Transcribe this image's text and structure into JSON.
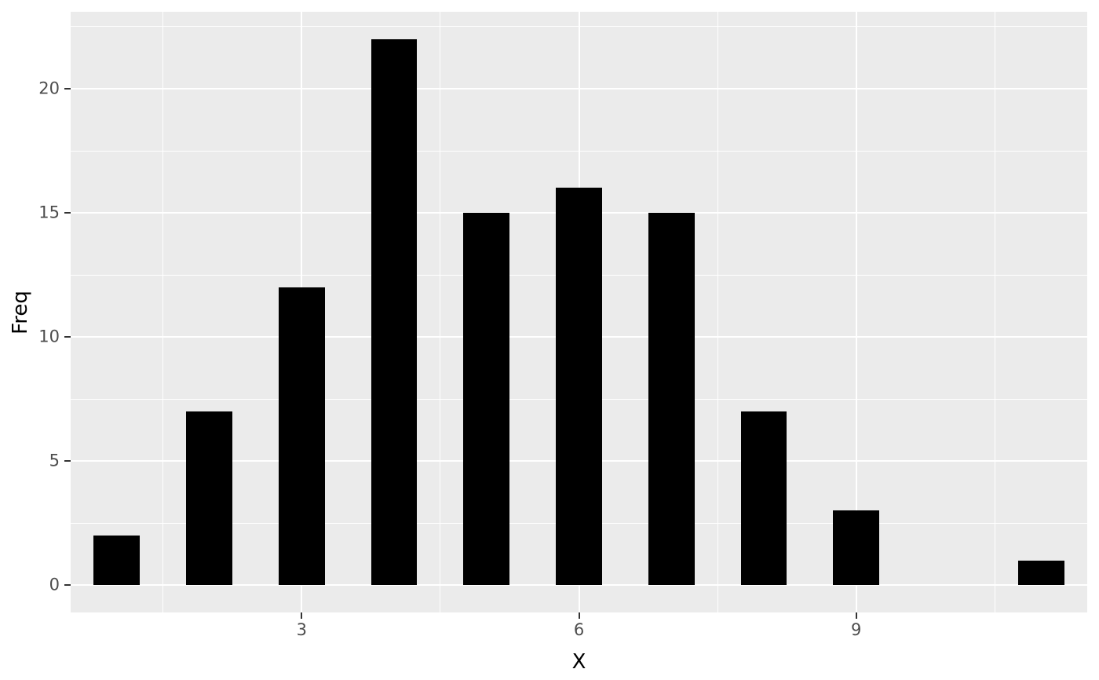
{
  "chart_data": {
    "type": "bar",
    "title": "",
    "xlabel": "X",
    "ylabel": "Freq",
    "x": [
      1,
      2,
      3,
      4,
      5,
      6,
      7,
      8,
      9,
      10,
      11
    ],
    "values": [
      2,
      7,
      12,
      22,
      15,
      16,
      15,
      7,
      3,
      0,
      1
    ],
    "bar_width": 0.5,
    "xlim": [
      0.5,
      11.5
    ],
    "ylim": [
      -1.1,
      23.1
    ],
    "x_major_ticks": [
      3,
      6,
      9
    ],
    "y_major_ticks": [
      0,
      5,
      10,
      15,
      20
    ],
    "x_minor_gridlines": [
      1.5,
      4.5,
      7.5,
      10.5
    ],
    "y_minor_gridlines": [
      2.5,
      7.5,
      12.5,
      17.5,
      22.5
    ],
    "grid": "on",
    "legend": "none",
    "colors": {
      "panel_background": "#EBEBEB",
      "gridline": "#FFFFFF",
      "bar_fill": "#000000",
      "tick_text": "#4D4D4D",
      "tick_mark": "#333333",
      "axis_title": "#000000",
      "outer_background": "#FFFFFF"
    }
  }
}
